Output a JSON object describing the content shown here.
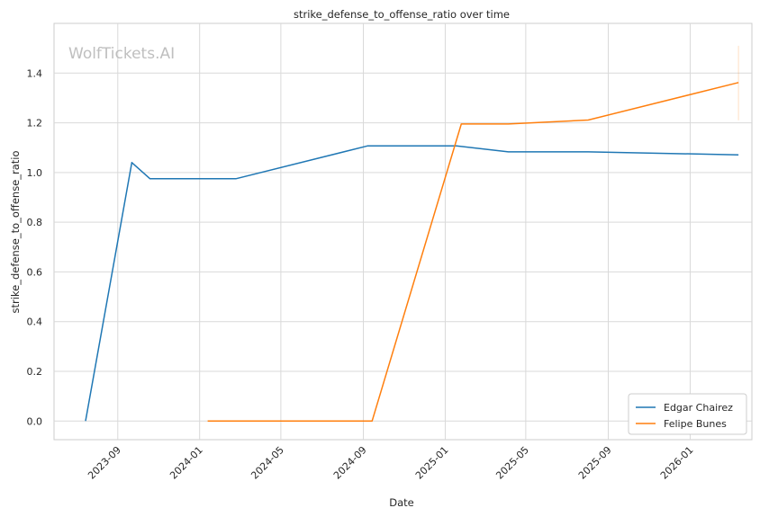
{
  "chart_data": {
    "type": "line",
    "title": "strike_defense_to_offense_ratio over time",
    "xlabel": "Date",
    "ylabel": "strike_defense_to_offense_ratio",
    "watermark": "WolfTickets.AI",
    "ylim": [
      -0.075,
      1.6
    ],
    "xlim": [
      "2023-05-29",
      "2026-04-03"
    ],
    "grid": true,
    "legend_position": "lower-right",
    "x_ticks": [
      "2023-09",
      "2024-01",
      "2024-05",
      "2024-09",
      "2025-01",
      "2025-05",
      "2025-09",
      "2026-01"
    ],
    "y_ticks": [
      "0.0",
      "0.2",
      "0.4",
      "0.6",
      "0.8",
      "1.0",
      "1.2",
      "1.4"
    ],
    "series": [
      {
        "name": "Edgar Chairez",
        "color": "#1f77b4",
        "points": [
          {
            "x": "2023-07-15",
            "y": 0.0
          },
          {
            "x": "2023-09-22",
            "y": 1.04
          },
          {
            "x": "2023-10-19",
            "y": 0.975
          },
          {
            "x": "2024-02-24",
            "y": 0.975
          },
          {
            "x": "2024-09-07",
            "y": 1.107
          },
          {
            "x": "2025-01-18",
            "y": 1.107
          },
          {
            "x": "2025-04-05",
            "y": 1.083
          },
          {
            "x": "2025-08-02",
            "y": 1.083
          },
          {
            "x": "2026-03-14",
            "y": 1.071
          }
        ]
      },
      {
        "name": "Felipe Bunes",
        "color": "#ff7f0e",
        "points": [
          {
            "x": "2024-01-13",
            "y": 0.0
          },
          {
            "x": "2024-09-14",
            "y": 0.0
          },
          {
            "x": "2025-01-25",
            "y": 1.195
          },
          {
            "x": "2025-04-05",
            "y": 1.195
          },
          {
            "x": "2025-08-02",
            "y": 1.211
          },
          {
            "x": "2026-03-14",
            "y": 1.362
          }
        ],
        "error_bar": {
          "x": "2026-03-14",
          "y_low": 1.21,
          "y_high": 1.51
        }
      }
    ]
  }
}
